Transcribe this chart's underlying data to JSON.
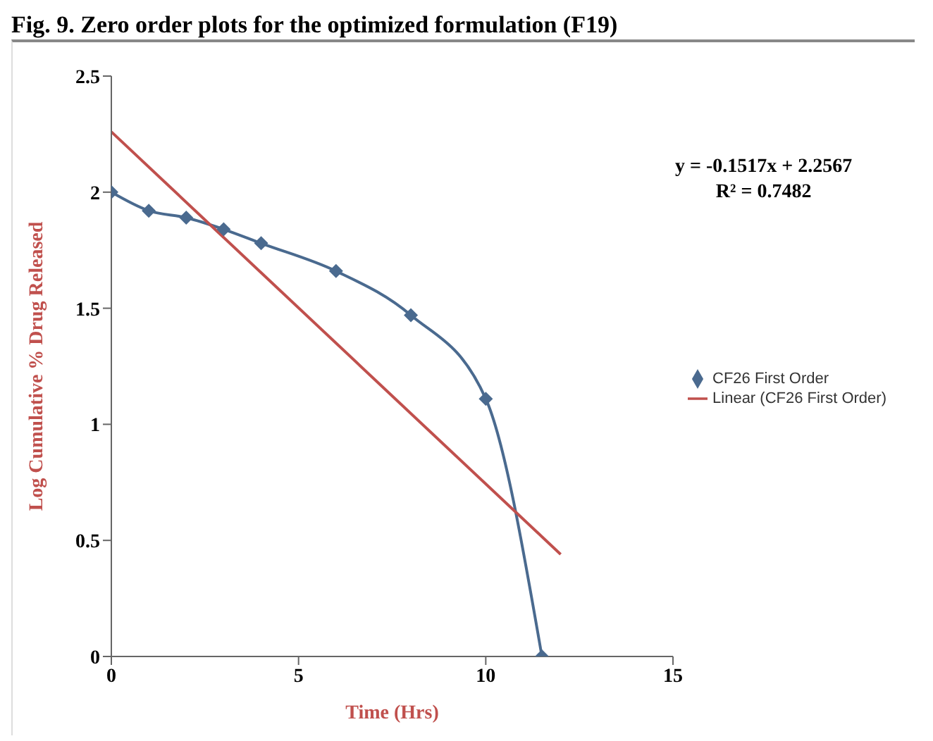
{
  "chart_data": {
    "type": "line",
    "title": "Fig. 9. Zero order plots for the optimized formulation (F19)",
    "xlabel": "Time (Hrs)",
    "ylabel": "Log Cumulative % Drug Released",
    "annotations": [
      "y = -0.1517x + 2.2567",
      "R² = 0.7482"
    ],
    "series": [
      {
        "name": "CF26 First Order",
        "color": "#4a6a8f",
        "x": [
          0,
          1,
          2,
          3,
          4,
          6,
          8,
          10,
          11.5
        ],
        "values": [
          2.0,
          1.92,
          1.89,
          1.84,
          1.78,
          1.66,
          1.47,
          1.11,
          0
        ],
        "marker": "diamond"
      },
      {
        "name": "Linear (CF26 First Order)",
        "color": "#c0504d",
        "type": "line",
        "x": [
          0,
          12
        ],
        "values": [
          2.26,
          0.44
        ],
        "marker": "none"
      }
    ],
    "xlim": [
      0,
      15
    ],
    "xticks": [
      0,
      5,
      10,
      15
    ],
    "ylim": [
      0,
      2.5
    ],
    "yticks": [
      0,
      0.5,
      1,
      1.5,
      2,
      2.5
    ],
    "legend": "right"
  }
}
